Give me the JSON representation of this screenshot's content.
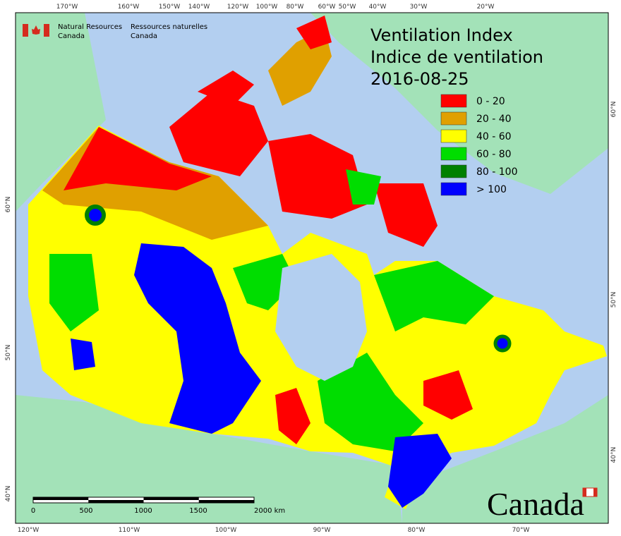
{
  "header": {
    "agency_en": [
      "Natural Resources",
      "Canada"
    ],
    "agency_fr": [
      "Ressources naturelles",
      "Canada"
    ]
  },
  "title": [
    "Ventilation Index",
    "Indice de ventilation"
  ],
  "date": "2016-08-25",
  "legend": [
    {
      "label": "0 - 20",
      "color": "#ff0000"
    },
    {
      "label": "20 - 40",
      "color": "#e0a000"
    },
    {
      "label": "40 - 60",
      "color": "#ffff00"
    },
    {
      "label": "60 - 80",
      "color": "#00dd00"
    },
    {
      "label": "80 - 100",
      "color": "#008000"
    },
    {
      "label": "> 100",
      "color": "#0000ff"
    }
  ],
  "graticule": {
    "top": [
      "170°W",
      "160°W",
      "150°W",
      "140°W",
      "120°W",
      "100°W",
      "80°W",
      "60°W",
      "50°W",
      "40°W",
      "30°W",
      "20°W"
    ],
    "bottom": [
      "120°W",
      "110°W",
      "100°W",
      "90°W",
      "80°W",
      "70°W"
    ],
    "left": [
      "60°N",
      "50°N",
      "40°N"
    ],
    "right": [
      "60°N",
      "50°N",
      "40°N"
    ]
  },
  "scale_bar": {
    "labels": [
      "0",
      "500",
      "1000",
      "1500",
      "2000 km"
    ]
  },
  "wordmark": "Canada"
}
